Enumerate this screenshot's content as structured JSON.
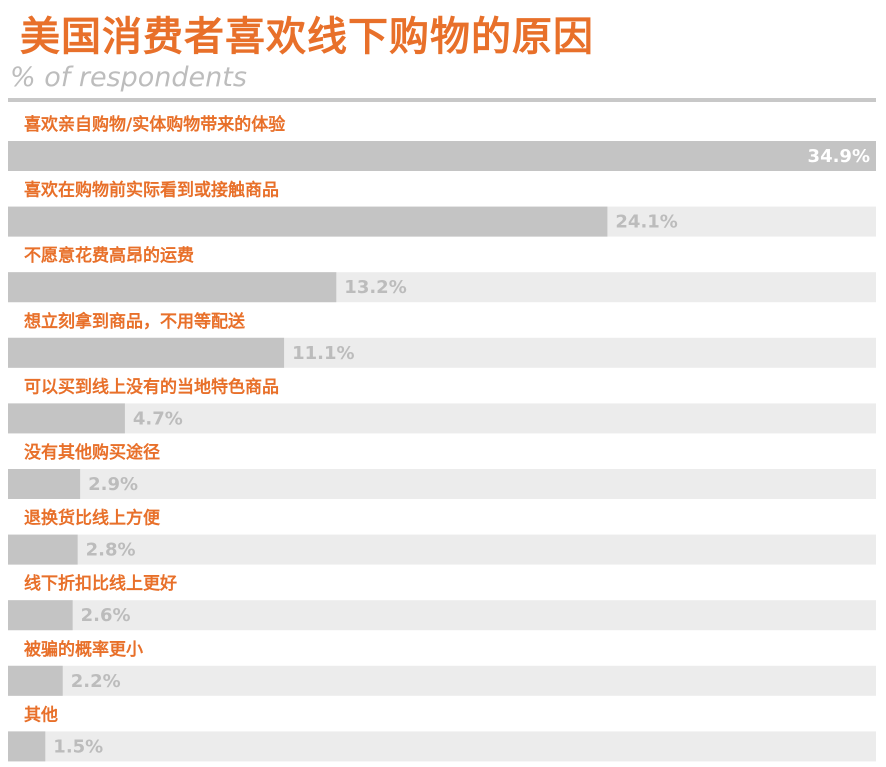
{
  "colors": {
    "accent": "#e8702a",
    "bar": "#c4c4c4",
    "bar_track": "#ececec",
    "value_text": "#bcbcbc",
    "value_text_inside": "#ffffff"
  },
  "header": {
    "title": "美国消费者喜欢线下购物的原因",
    "subtitle": "% of respondents"
  },
  "chart_data": {
    "type": "bar",
    "orientation": "horizontal",
    "title": "美国消费者喜欢线下购物的原因",
    "subtitle": "% of respondents",
    "xlabel": "",
    "ylabel": "",
    "xlim": [
      0,
      34.9
    ],
    "grid": false,
    "legend": "none",
    "categories": [
      "喜欢亲自购物/实体购物带来的体验",
      "喜欢在购物前实际看到或接触商品",
      "不愿意花费高昂的运费",
      "想立刻拿到商品，不用等配送",
      "可以买到线上没有的当地特色商品",
      "没有其他购买途径",
      "退换货比线上方便",
      "线下折扣比线上更好",
      "被骗的概率更小",
      "其他"
    ],
    "values": [
      34.9,
      24.1,
      13.2,
      11.1,
      4.7,
      2.9,
      2.8,
      2.6,
      2.2,
      1.5
    ],
    "value_labels": [
      "34.9%",
      "24.1%",
      "13.2%",
      "11.1%",
      "4.7%",
      "2.9%",
      "2.8%",
      "2.6%",
      "2.2%",
      "1.5%"
    ]
  }
}
